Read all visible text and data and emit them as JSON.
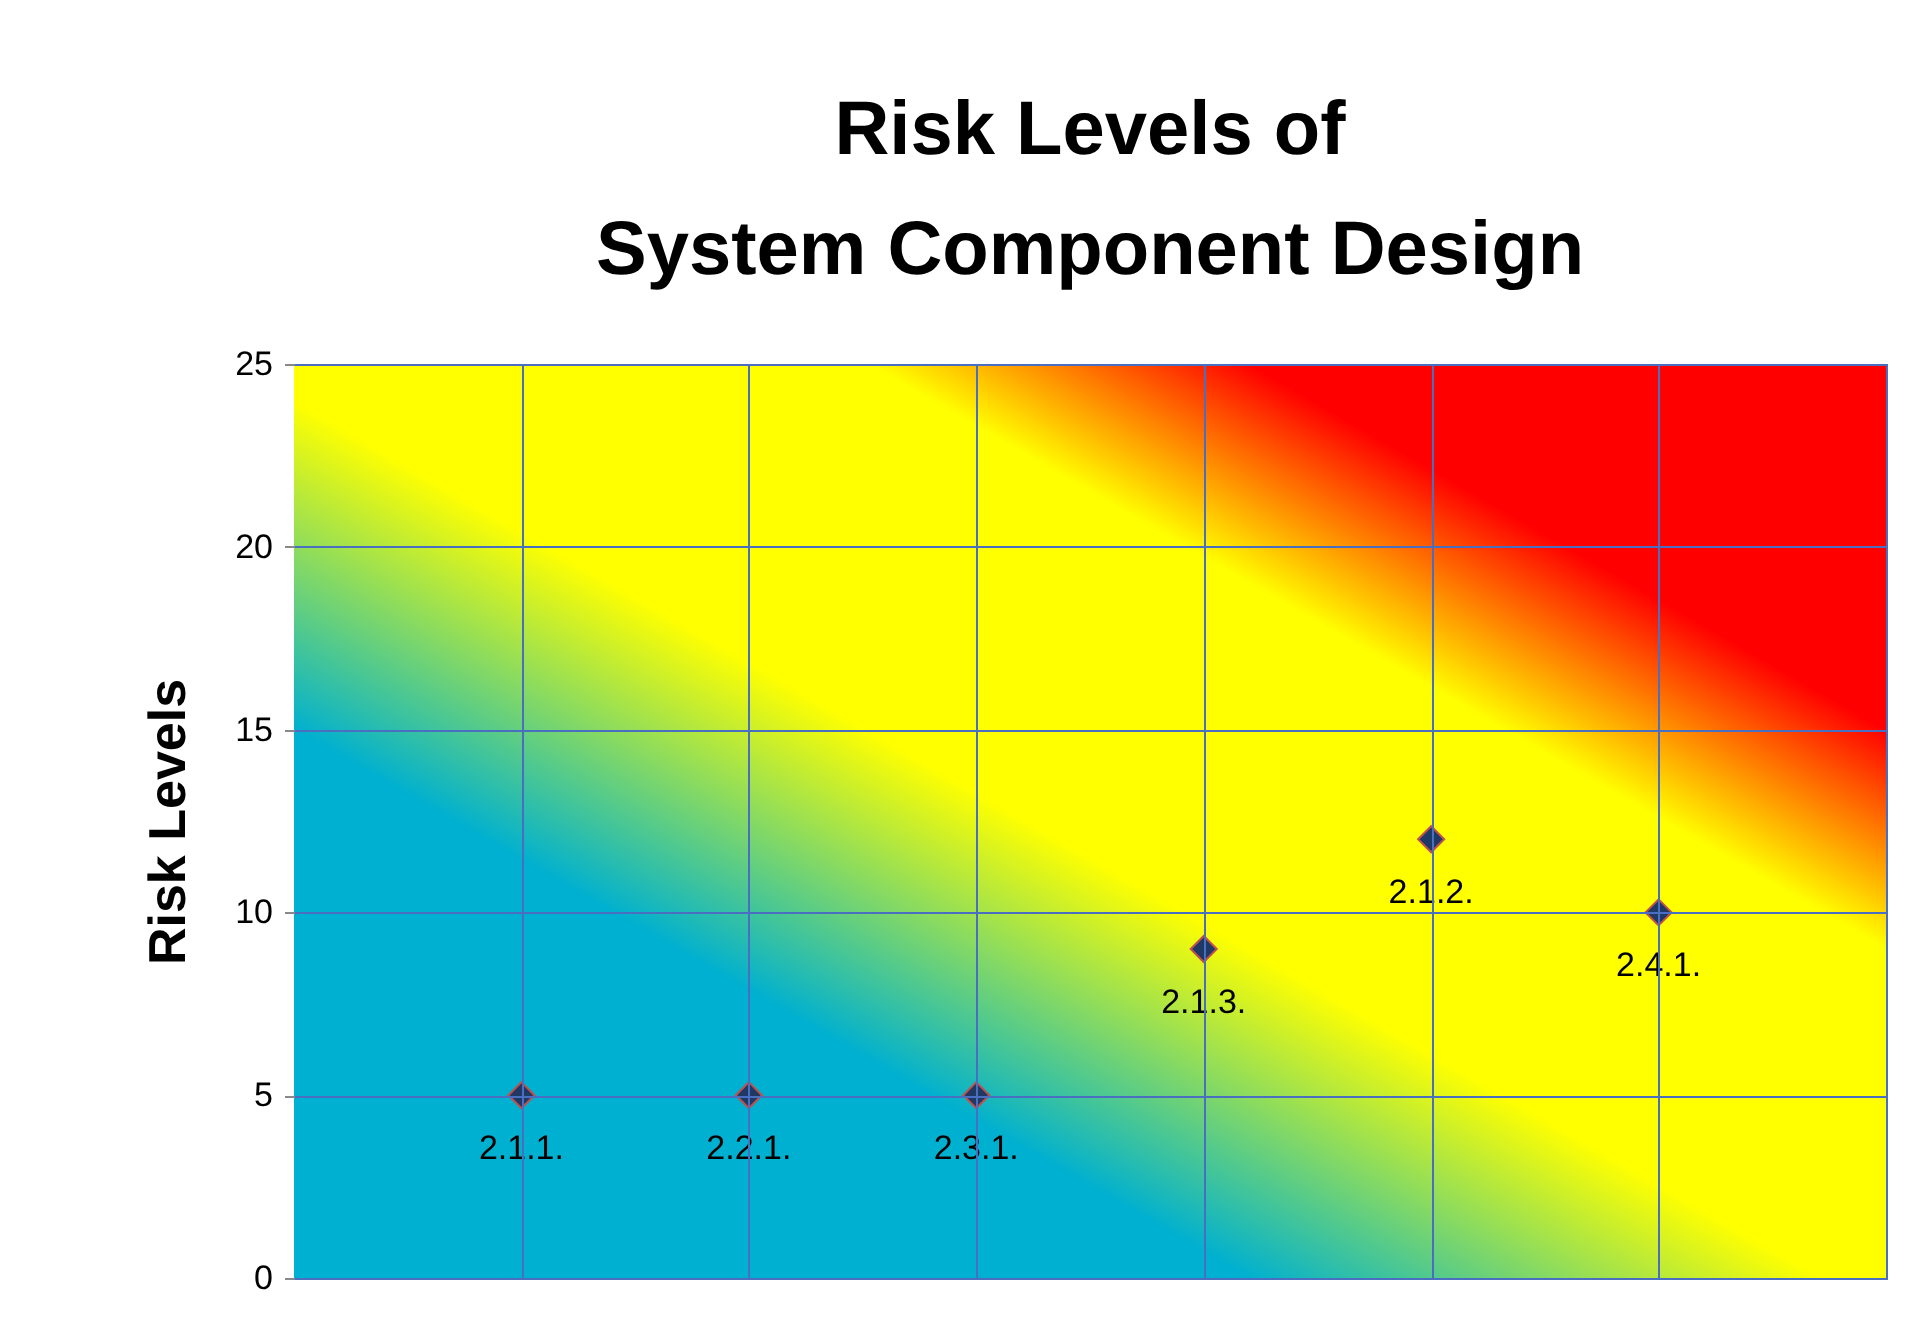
{
  "chart_data": {
    "type": "scatter",
    "title": [
      "Risk Levels of",
      "System Component Design"
    ],
    "ylabel": "Risk Levels",
    "categories": [
      null,
      null,
      null,
      null,
      null,
      null
    ],
    "series": [
      {
        "color": "#1f3864",
        "values": [
          5,
          5,
          5,
          9,
          12,
          10
        ],
        "value_labels": [
          "2.1.1.",
          "2.2.1.",
          "2.3.1.",
          "2.1.3.",
          "2.1.2.",
          "2.4.1."
        ]
      }
    ],
    "ylim": [
      0,
      25
    ],
    "yticks": [
      0,
      5,
      10,
      15,
      20,
      25
    ],
    "grid": true,
    "marker": "diamond",
    "tick_labels": "y"
  }
}
